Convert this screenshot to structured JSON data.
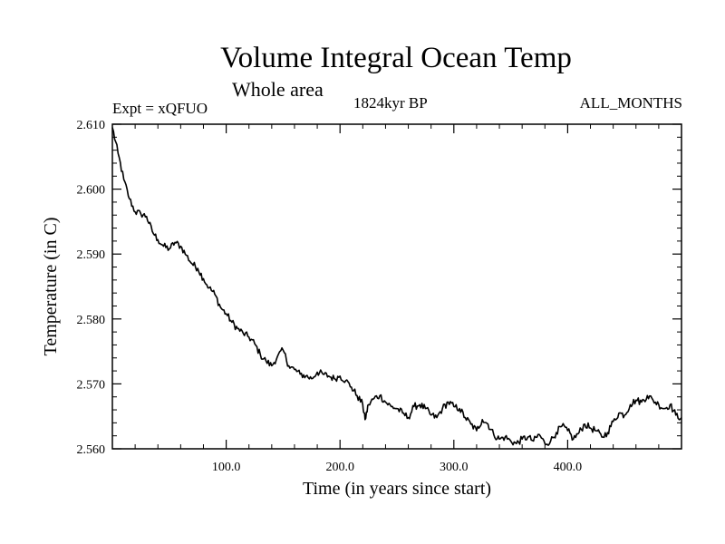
{
  "header": {
    "title": "Volume Integral Ocean Temp",
    "subtitle": "Whole area",
    "experiment": "Expt = xQFUO",
    "period": "1824kyr BP",
    "months": "ALL_MONTHS"
  },
  "chart_data": {
    "type": "line",
    "title": "Volume Integral Ocean Temp",
    "subtitle": "Whole area",
    "xlabel": "Time (in years since start)",
    "ylabel": "Temperature (in C)",
    "xlim": [
      0,
      500
    ],
    "ylim": [
      2.56,
      2.61
    ],
    "xticks": [
      100,
      200,
      300,
      400
    ],
    "xtick_labels": [
      "100.0",
      "200.0",
      "300.0",
      "400.0"
    ],
    "yticks": [
      2.56,
      2.57,
      2.58,
      2.59,
      2.6,
      2.61
    ],
    "ytick_labels": [
      "2.560",
      "2.570",
      "2.580",
      "2.590",
      "2.600",
      "2.610"
    ],
    "series": [
      {
        "name": "Volume integral ocean temperature",
        "color": "#000000",
        "x": [
          0,
          5,
          10,
          15,
          20,
          25,
          30,
          35,
          40,
          45,
          50,
          55,
          60,
          65,
          70,
          75,
          80,
          85,
          90,
          95,
          100,
          105,
          110,
          115,
          120,
          125,
          130,
          135,
          140,
          145,
          150,
          155,
          160,
          165,
          170,
          175,
          180,
          185,
          190,
          195,
          200,
          205,
          210,
          215,
          220,
          222,
          225,
          230,
          235,
          240,
          245,
          250,
          255,
          260,
          265,
          270,
          275,
          280,
          285,
          290,
          295,
          300,
          305,
          310,
          315,
          320,
          325,
          330,
          335,
          340,
          345,
          350,
          355,
          360,
          365,
          370,
          375,
          380,
          385,
          390,
          395,
          400,
          405,
          410,
          415,
          420,
          425,
          430,
          435,
          440,
          445,
          450,
          455,
          460,
          465,
          470,
          475,
          480,
          485,
          490,
          495,
          500
        ],
        "values": [
          2.6095,
          2.6055,
          2.6015,
          2.5985,
          2.5965,
          2.5962,
          2.5958,
          2.5935,
          2.5922,
          2.5912,
          2.5908,
          2.5918,
          2.5912,
          2.5898,
          2.5885,
          2.5878,
          2.5862,
          2.5848,
          2.5838,
          2.5818,
          2.5808,
          2.5795,
          2.5785,
          2.5778,
          2.5772,
          2.5762,
          2.5745,
          2.5735,
          2.5728,
          2.5742,
          2.5752,
          2.5728,
          2.5722,
          2.5715,
          2.5712,
          2.5708,
          2.5718,
          2.5715,
          2.5712,
          2.5708,
          2.5712,
          2.5705,
          2.5695,
          2.5682,
          2.5668,
          2.5645,
          2.5668,
          2.5678,
          2.5682,
          2.5672,
          2.5665,
          2.5662,
          2.5655,
          2.5648,
          2.5665,
          2.5668,
          2.5662,
          2.5652,
          2.5648,
          2.5662,
          2.5672,
          2.5665,
          2.5662,
          2.5648,
          2.5638,
          2.5628,
          2.5645,
          2.5638,
          2.5622,
          2.5615,
          2.5618,
          2.5612,
          2.5608,
          2.5615,
          2.5618,
          2.5612,
          2.5622,
          2.5608,
          2.5612,
          2.5625,
          2.5635,
          2.5628,
          2.5615,
          2.5625,
          2.5638,
          2.5632,
          2.5628,
          2.5618,
          2.5625,
          2.5642,
          2.5655,
          2.5652,
          2.5668,
          2.5675,
          2.5672,
          2.5682,
          2.5675,
          2.5668,
          2.5662,
          2.5668,
          2.5652,
          2.5648
        ]
      }
    ]
  }
}
